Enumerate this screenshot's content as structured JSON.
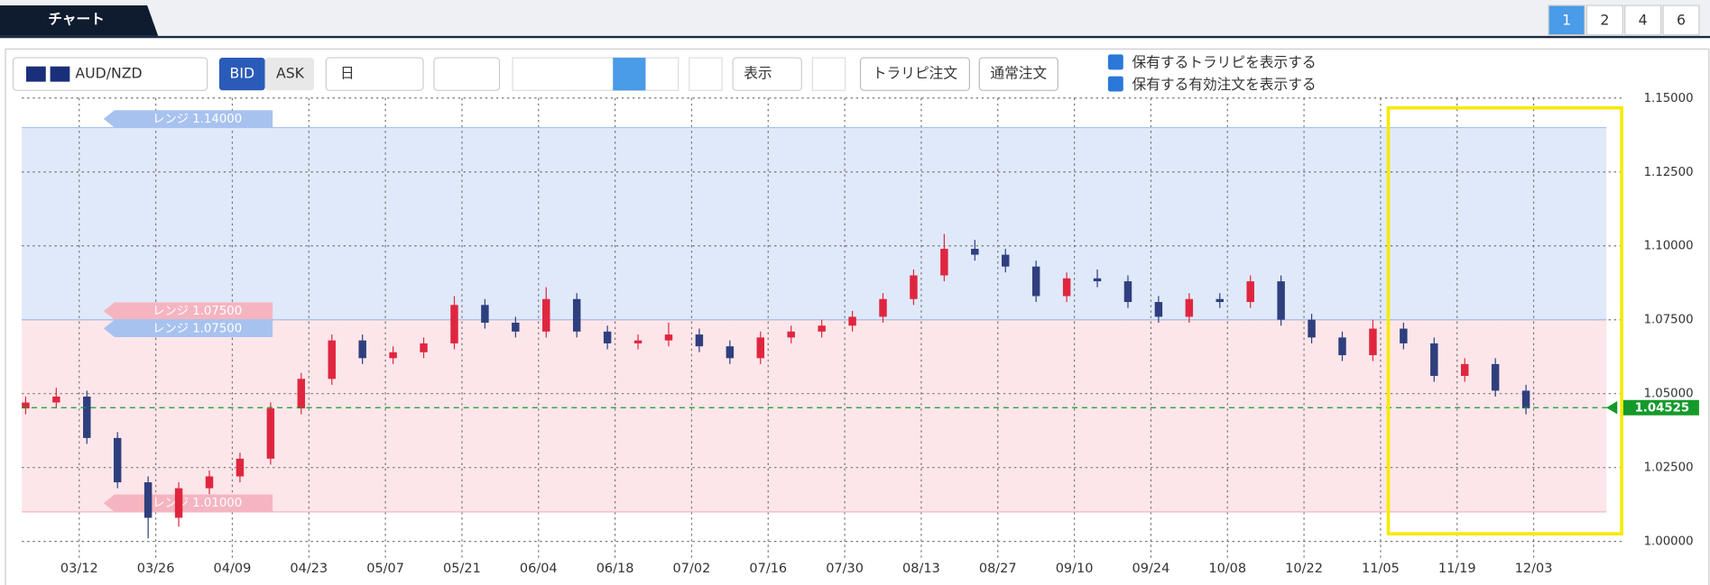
{
  "tab": "チャート",
  "pages": [
    "1",
    "2",
    "4",
    "6"
  ],
  "toolbar": {
    "pair": "AUD/NZD",
    "bid": "BID",
    "ask": "ASK",
    "period": "日",
    "display": "表示",
    "trap_order": "トラリピ注文",
    "normal_order": "通常注文",
    "check1": "保有するトラリピを表示する",
    "check2": "保有する有効注文を表示する"
  },
  "chart_data": {
    "type": "candlestick",
    "x": [
      0,
      4,
      8,
      12,
      16,
      20,
      24,
      28,
      32,
      36,
      40,
      44,
      48,
      52,
      56,
      60,
      64,
      68,
      72,
      76,
      80,
      84,
      88,
      92,
      96,
      100,
      104,
      108,
      112,
      116,
      120,
      124,
      128,
      132,
      136,
      140,
      144,
      148,
      152,
      156,
      160,
      164,
      168,
      172,
      176,
      180,
      184,
      188,
      192,
      196
    ],
    "open": [
      1.045,
      1.047,
      1.049,
      1.035,
      1.02,
      1.008,
      1.018,
      1.022,
      1.028,
      1.045,
      1.055,
      1.068,
      1.062,
      1.064,
      1.067,
      1.08,
      1.074,
      1.071,
      1.082,
      1.071,
      1.067,
      1.068,
      1.07,
      1.066,
      1.062,
      1.069,
      1.071,
      1.073,
      1.076,
      1.082,
      1.09,
      1.099,
      1.097,
      1.093,
      1.083,
      1.089,
      1.088,
      1.081,
      1.076,
      1.082,
      1.081,
      1.088,
      1.075,
      1.069,
      1.063,
      1.072,
      1.067,
      1.056,
      1.06,
      1.051
    ],
    "high": [
      1.049,
      1.052,
      1.051,
      1.037,
      1.022,
      1.02,
      1.024,
      1.03,
      1.047,
      1.057,
      1.07,
      1.07,
      1.066,
      1.069,
      1.083,
      1.082,
      1.076,
      1.086,
      1.084,
      1.073,
      1.07,
      1.074,
      1.072,
      1.068,
      1.071,
      1.073,
      1.075,
      1.078,
      1.084,
      1.092,
      1.104,
      1.102,
      1.099,
      1.095,
      1.091,
      1.092,
      1.09,
      1.083,
      1.084,
      1.084,
      1.09,
      1.09,
      1.077,
      1.071,
      1.075,
      1.074,
      1.069,
      1.062,
      1.062,
      1.053
    ],
    "low": [
      1.043,
      1.045,
      1.033,
      1.018,
      1.001,
      1.005,
      1.016,
      1.02,
      1.026,
      1.043,
      1.053,
      1.06,
      1.06,
      1.062,
      1.065,
      1.072,
      1.069,
      1.069,
      1.069,
      1.065,
      1.065,
      1.066,
      1.064,
      1.06,
      1.06,
      1.067,
      1.069,
      1.071,
      1.074,
      1.08,
      1.088,
      1.095,
      1.091,
      1.081,
      1.081,
      1.086,
      1.079,
      1.074,
      1.074,
      1.079,
      1.079,
      1.073,
      1.067,
      1.061,
      1.061,
      1.065,
      1.054,
      1.054,
      1.049,
      1.043
    ],
    "close": [
      1.047,
      1.049,
      1.035,
      1.02,
      1.008,
      1.018,
      1.022,
      1.028,
      1.045,
      1.055,
      1.068,
      1.062,
      1.064,
      1.067,
      1.08,
      1.074,
      1.071,
      1.082,
      1.071,
      1.067,
      1.068,
      1.07,
      1.066,
      1.062,
      1.069,
      1.071,
      1.073,
      1.076,
      1.082,
      1.09,
      1.099,
      1.097,
      1.093,
      1.083,
      1.089,
      1.088,
      1.081,
      1.076,
      1.082,
      1.081,
      1.088,
      1.075,
      1.069,
      1.063,
      1.072,
      1.067,
      1.056,
      1.06,
      1.051,
      1.045
    ],
    "up_color": "#e0263f",
    "down_color": "#2f3f7e",
    "xlim": [
      -0.5,
      207.5
    ],
    "xticks": [
      {
        "value": 7,
        "label": "03/12"
      },
      {
        "value": 17,
        "label": "03/26"
      },
      {
        "value": 27,
        "label": "04/09"
      },
      {
        "value": 37,
        "label": "04/23"
      },
      {
        "value": 47,
        "label": "05/07"
      },
      {
        "value": 57,
        "label": "05/21"
      },
      {
        "value": 67,
        "label": "06/04"
      },
      {
        "value": 77,
        "label": "06/18"
      },
      {
        "value": 87,
        "label": "07/02"
      },
      {
        "value": 97,
        "label": "07/16"
      },
      {
        "value": 107,
        "label": "07/30"
      },
      {
        "value": 117,
        "label": "08/13"
      },
      {
        "value": 127,
        "label": "08/27"
      },
      {
        "value": 137,
        "label": "09/10"
      },
      {
        "value": 147,
        "label": "09/24"
      },
      {
        "value": 157,
        "label": "10/08"
      },
      {
        "value": 167,
        "label": "10/22"
      },
      {
        "value": 177,
        "label": "11/05"
      },
      {
        "value": 187,
        "label": "11/19"
      },
      {
        "value": 197,
        "label": "12/03"
      }
    ],
    "ylim": [
      1.0,
      1.15
    ],
    "yticks": [
      {
        "value": 1.0,
        "label": "1.00000"
      },
      {
        "value": 1.025,
        "label": "1.02500"
      },
      {
        "value": 1.05,
        "label": "1.05000"
      },
      {
        "value": 1.075,
        "label": "1.07500"
      },
      {
        "value": 1.1,
        "label": "1.10000"
      },
      {
        "value": 1.125,
        "label": "1.12500"
      },
      {
        "value": 1.15,
        "label": "1.15000"
      }
    ],
    "grid": true,
    "ranges": [
      {
        "value": 1.14,
        "label": "レンジ 1.14000",
        "color": "#a8c2f0"
      },
      {
        "value": 1.075,
        "label": "レンジ 1.07500",
        "color": "#f5b5c0"
      },
      {
        "value": 1.075,
        "label": "レンジ 1.07500",
        "color": "#a8c2f0"
      },
      {
        "value": 1.01,
        "label": "レンジ 1.01000",
        "color": "#f5b5c0"
      }
    ],
    "bands": [
      {
        "from": 1.075,
        "to": 1.14,
        "color": "#e0e9fa"
      },
      {
        "from": 1.01,
        "to": 1.075,
        "color": "#fde6ea"
      }
    ],
    "current": {
      "value": 1.04525,
      "label": "1.04525",
      "color": "#149a2a"
    }
  }
}
